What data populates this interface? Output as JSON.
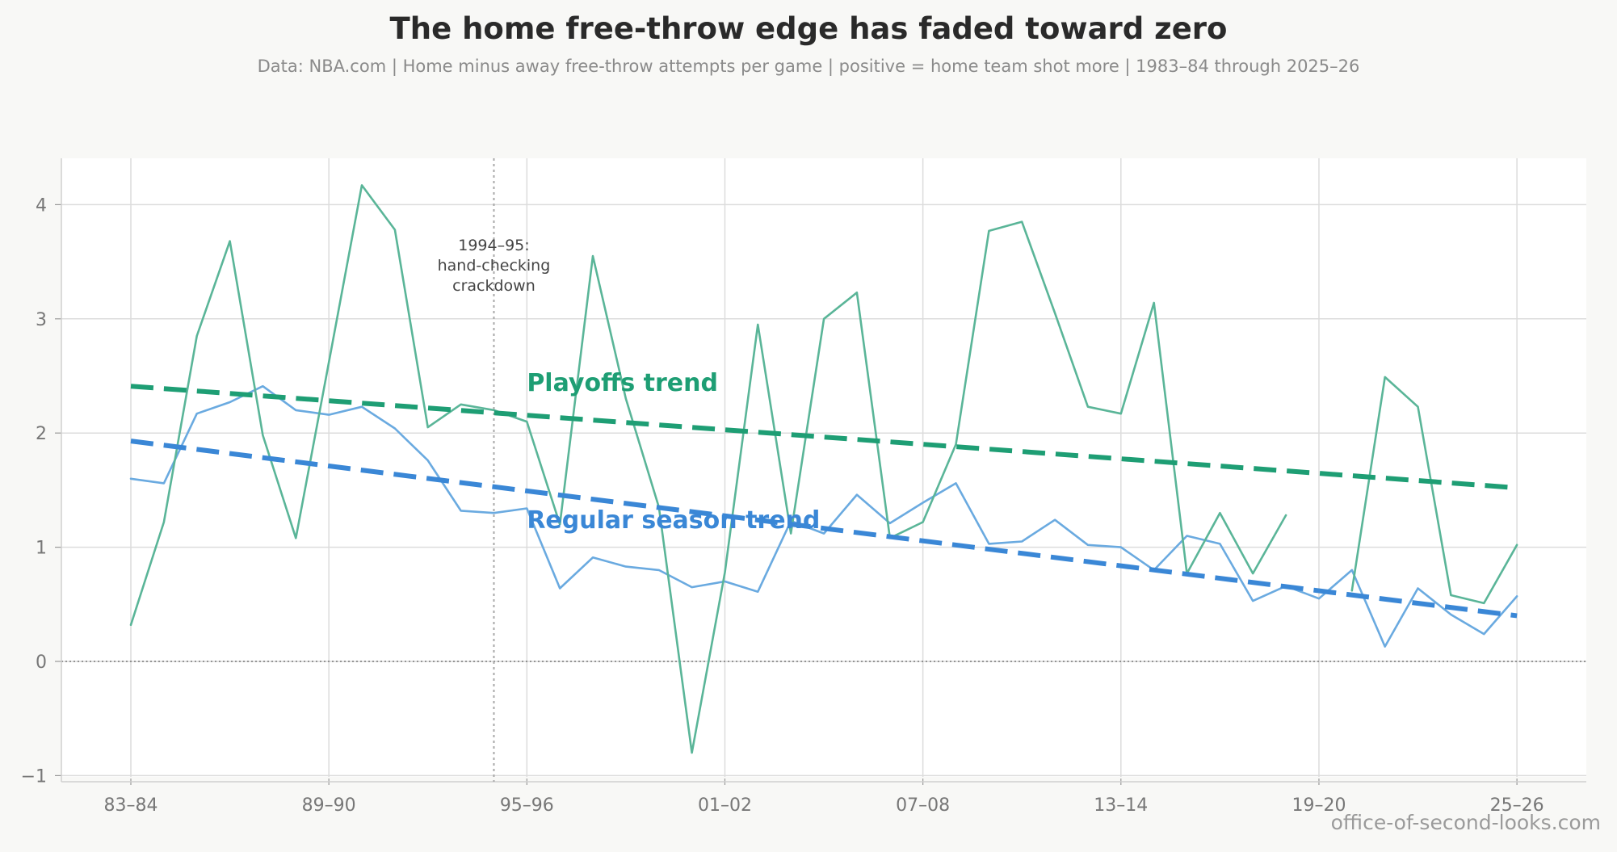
{
  "chart_data": {
    "type": "line",
    "title": "The home free-throw edge has faded toward zero",
    "subtitle": "Data: NBA.com  |  Home minus away free-throw attempts per game  |  positive = home team shot more  |  1983–84 through 2025–26",
    "xlabel": "",
    "ylabel": "",
    "ylim": [
      -1,
      4.4
    ],
    "y_ticks": [
      -1,
      0,
      1,
      2,
      3,
      4
    ],
    "x_ticks": [
      {
        "index": 0,
        "label": "83–84"
      },
      {
        "index": 6,
        "label": "89–90"
      },
      {
        "index": 12,
        "label": "95–96"
      },
      {
        "index": 18,
        "label": "01–02"
      },
      {
        "index": 24,
        "label": "07–08"
      },
      {
        "index": 30,
        "label": "13–14"
      },
      {
        "index": 36,
        "label": "19–20"
      },
      {
        "index": 42,
        "label": "25–26"
      }
    ],
    "grid": true,
    "zero_line": true,
    "series": [
      {
        "values": [
          1.6,
          1.56,
          2.17,
          2.27,
          2.41,
          2.2,
          2.16,
          2.23,
          2.04,
          1.76,
          1.32,
          1.3,
          1.34,
          0.64,
          0.91,
          0.83,
          0.8,
          0.65,
          0.7,
          0.61,
          1.23,
          1.12,
          1.46,
          1.21,
          1.39,
          1.56,
          1.03,
          1.05,
          1.24,
          1.02,
          1.0,
          0.8,
          1.1,
          1.03,
          0.53,
          0.66,
          0.55,
          0.8,
          0.13,
          0.64,
          0.41,
          0.24,
          0.57
        ],
        "color": "#6aaae0"
      },
      {
        "values": [
          0.32,
          1.22,
          2.85,
          3.68,
          1.98,
          1.08,
          2.62,
          4.17,
          3.78,
          2.05,
          2.25,
          2.2,
          2.1,
          1.2,
          3.55,
          2.3,
          1.35,
          -0.8,
          0.78,
          2.95,
          1.12,
          3.0,
          3.23,
          1.08,
          1.22,
          1.9,
          3.77,
          3.85,
          3.05,
          2.23,
          2.17,
          3.14,
          0.77,
          1.3,
          0.77,
          1.28,
          null,
          0.62,
          2.49,
          2.23,
          0.58,
          0.51,
          1.02
        ],
        "color": "#5ab598"
      }
    ],
    "trends": [
      {
        "label": "Regular season trend",
        "start": 1.93,
        "end": 0.4,
        "color": "#3a87d6"
      },
      {
        "label": "Playoffs trend",
        "start": 2.41,
        "end": 1.52,
        "color": "#1e9e74"
      }
    ],
    "annotation": {
      "x_index": 11,
      "lines": [
        "1994–95:",
        "hand-checking",
        "crackdown"
      ]
    },
    "credit": "office-of-second-looks.com"
  }
}
